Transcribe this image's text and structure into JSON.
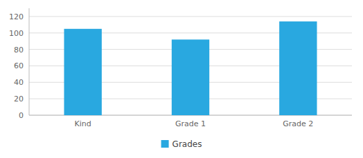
{
  "chart_data": {
    "type": "bar",
    "categories": [
      "Kind",
      "Grade 1",
      "Grade 2"
    ],
    "series": [
      {
        "name": "Grades",
        "color": "#29a8e0",
        "values": [
          105,
          92,
          114
        ]
      }
    ],
    "ylim": [
      0,
      130
    ],
    "yticks": [
      0,
      20,
      40,
      60,
      80,
      100,
      120
    ],
    "grid": true,
    "legend": "bottom"
  }
}
